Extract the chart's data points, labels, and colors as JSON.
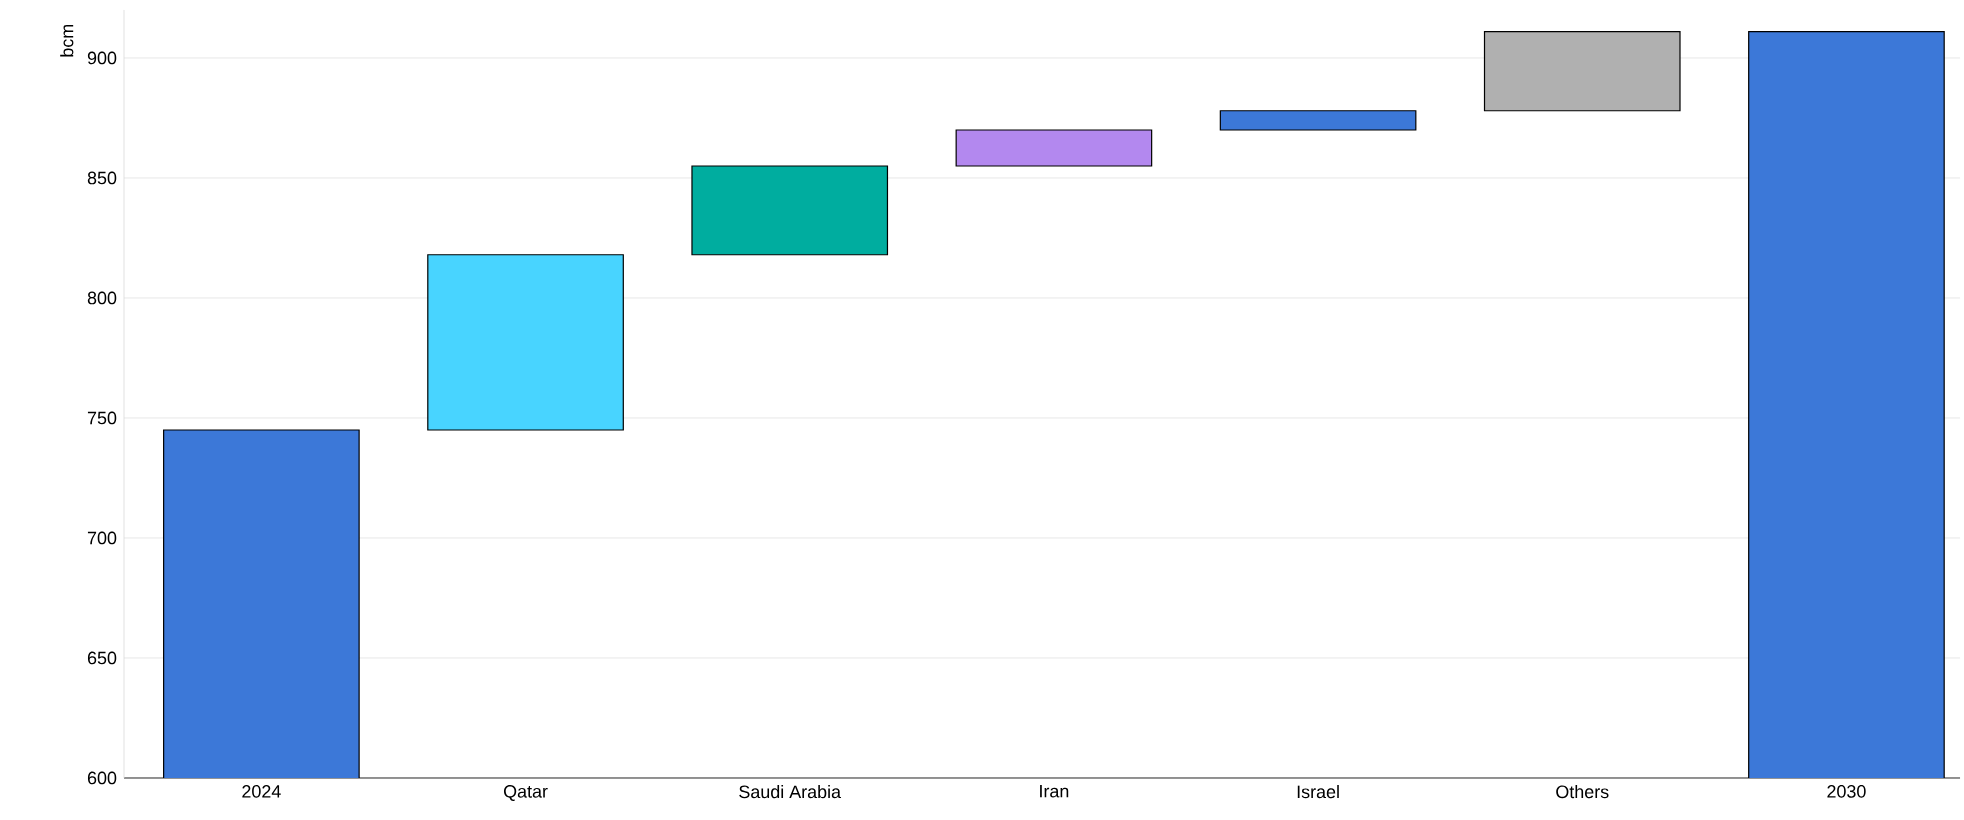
{
  "chart_data": {
    "type": "bar",
    "ylabel": "bcm",
    "categories": [
      "2024",
      "Qatar",
      "Saudi Arabia",
      "Iran",
      "Israel",
      "Others",
      "2030"
    ],
    "values": [
      745,
      73,
      37,
      15,
      8,
      33,
      911
    ],
    "base": [
      null,
      745,
      818,
      855,
      870,
      878,
      null
    ],
    "colors": [
      "#3c78d8",
      "#48d4ff",
      "#00ad9f",
      "#b388ef",
      "#3c78d8",
      "#b0b0b0",
      "#3c78d8"
    ],
    "ylim": [
      600,
      920
    ],
    "yticks": [
      600,
      650,
      700,
      750,
      800,
      850,
      900
    ],
    "grid": "y"
  }
}
